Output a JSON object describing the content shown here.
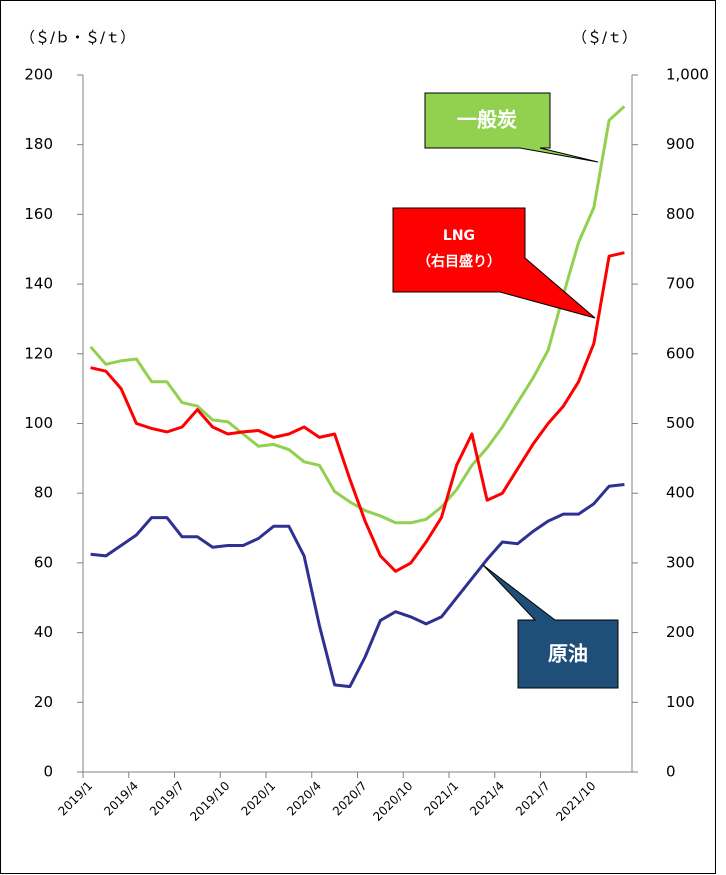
{
  "chart_data": {
    "type": "line",
    "left_unit": "（＄/ｂ・＄/ｔ）",
    "right_unit": "（＄/ｔ）",
    "categories": [
      "2019/1",
      null,
      null,
      "2019/4",
      null,
      null,
      "2019/7",
      null,
      null,
      "2019/10",
      null,
      null,
      "2020/1",
      null,
      null,
      "2020/4",
      null,
      null,
      "2020/7",
      null,
      null,
      "2020/10",
      null,
      null,
      "2021/1",
      null,
      null,
      "2021/4",
      null,
      null,
      "2021/7",
      null,
      null,
      "2021/10",
      null,
      null
    ],
    "ylim": [
      0,
      200
    ],
    "yticks": [
      0,
      20,
      40,
      60,
      80,
      100,
      120,
      140,
      160,
      180,
      200
    ],
    "y2lim": [
      0,
      1000
    ],
    "y2ticks": [
      0,
      100,
      200,
      300,
      400,
      500,
      600,
      700,
      800,
      900,
      {
        "value": 1000,
        "label": "1,000"
      }
    ],
    "series": [
      {
        "name": "一般炭",
        "color": "#92d050",
        "values": [
          122,
          117,
          118,
          118.5,
          112,
          112,
          106,
          105,
          101,
          100.5,
          97,
          93.5,
          94,
          92.5,
          89,
          88,
          80.5,
          77.5,
          75,
          73.5,
          71.5,
          71.5,
          72.5,
          76,
          81,
          88,
          93,
          99,
          106,
          113,
          121,
          137,
          152,
          162,
          187,
          191
        ]
      },
      {
        "name": "LNG",
        "note": "（右目盛り）",
        "color": "#ff0000",
        "axis": "y2",
        "values": [
          580,
          575,
          550,
          500,
          493,
          488,
          495,
          520,
          495,
          485,
          488,
          490,
          480,
          485,
          495,
          480,
          485,
          420,
          360,
          310,
          288,
          300,
          330,
          365,
          440,
          485,
          390,
          400,
          435,
          470,
          500,
          525,
          560,
          615,
          740,
          745
        ]
      },
      {
        "name": "原油",
        "color": "#2e3192",
        "values": [
          62.5,
          62,
          65,
          68,
          73,
          73,
          67.5,
          67.5,
          64.5,
          65,
          65,
          67,
          70.5,
          70.5,
          62,
          42,
          25,
          24.5,
          33,
          43.5,
          46,
          44.5,
          42.5,
          44.5,
          50,
          55.5,
          61,
          66,
          65.5,
          69,
          72,
          74,
          74,
          77,
          82,
          82.5
        ]
      }
    ]
  }
}
